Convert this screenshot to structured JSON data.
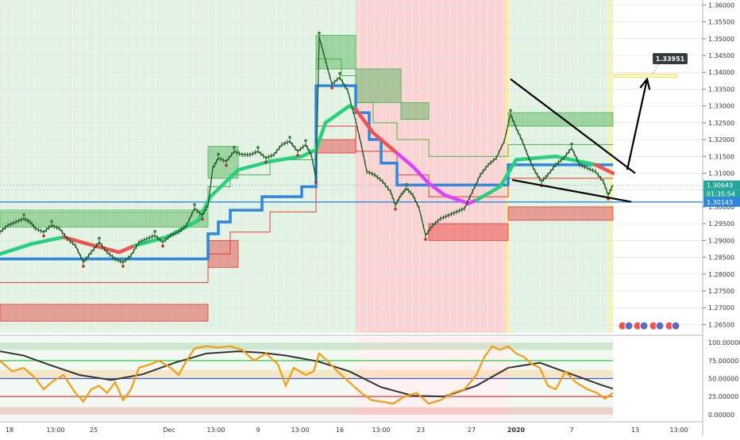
{
  "colors": {
    "bull_band": "#4caf50",
    "bear_band": "#e53935",
    "trend_up": "#26d07c",
    "trend_down": "#ef5350",
    "trend_neutral": "#e040fb",
    "support_blue": "#2e86de",
    "bar": "#1e5a1e",
    "oscillator": "#f39c12",
    "osc_signal": "#333333",
    "arrow": "#000000",
    "target_box": "#fff59d"
  },
  "chart_data": [
    {
      "type": "line",
      "panel": "price",
      "y_ticks": [
        "1.36000",
        "1.35500",
        "1.35000",
        "1.34500",
        "1.34000",
        "1.33500",
        "1.33000",
        "1.32500",
        "1.32000",
        "1.31500",
        "1.31000",
        "1.30500",
        "1.30000",
        "1.29500",
        "1.29000",
        "1.28500",
        "1.28000",
        "1.27500",
        "1.27000",
        "1.26500"
      ],
      "ylim": [
        1.2625,
        1.3615
      ],
      "x_ticks": [
        "18",
        "13:00",
        "25",
        "Dec",
        "13:00",
        "9",
        "13:00",
        "16",
        "13:00",
        "23",
        "27",
        "2020",
        "7",
        "13",
        "13:00"
      ],
      "price_tags": {
        "current": "1.30643",
        "countdown": "01:35:54",
        "support": "1.30143",
        "target": "1.33951"
      },
      "target_level": 1.33951,
      "support_level": 1.30143,
      "current_level": 1.30643,
      "price_path": [
        [
          0,
          1.2925
        ],
        [
          10,
          1.2945
        ],
        [
          20,
          1.2955
        ],
        [
          30,
          1.2965
        ],
        [
          38,
          1.2955
        ],
        [
          45,
          1.2935
        ],
        [
          55,
          1.2925
        ],
        [
          65,
          1.2945
        ],
        [
          75,
          1.2935
        ],
        [
          85,
          1.2905
        ],
        [
          95,
          1.2885
        ],
        [
          105,
          1.2835
        ],
        [
          115,
          1.2865
        ],
        [
          125,
          1.2895
        ],
        [
          135,
          1.2865
        ],
        [
          145,
          1.2845
        ],
        [
          155,
          1.2835
        ],
        [
          165,
          1.2855
        ],
        [
          175,
          1.2895
        ],
        [
          185,
          1.2905
        ],
        [
          195,
          1.2915
        ],
        [
          205,
          1.2895
        ],
        [
          215,
          1.2915
        ],
        [
          225,
          1.2925
        ],
        [
          235,
          1.2945
        ],
        [
          245,
          1.2995
        ],
        [
          255,
          1.2975
        ],
        [
          262,
          1.3005
        ],
        [
          268,
          1.3115
        ],
        [
          275,
          1.3145
        ],
        [
          285,
          1.3135
        ],
        [
          295,
          1.3165
        ],
        [
          305,
          1.3155
        ],
        [
          315,
          1.3155
        ],
        [
          325,
          1.3165
        ],
        [
          335,
          1.3145
        ],
        [
          345,
          1.3155
        ],
        [
          355,
          1.3185
        ],
        [
          365,
          1.3195
        ],
        [
          375,
          1.3165
        ],
        [
          385,
          1.3185
        ],
        [
          392,
          1.3155
        ],
        [
          398,
          1.3085
        ],
        [
          402,
          1.3505
        ],
        [
          410,
          1.3435
        ],
        [
          418,
          1.3365
        ],
        [
          428,
          1.3385
        ],
        [
          438,
          1.3345
        ],
        [
          448,
          1.3255
        ],
        [
          455,
          1.3185
        ],
        [
          462,
          1.3105
        ],
        [
          472,
          1.3095
        ],
        [
          482,
          1.3075
        ],
        [
          492,
          1.3045
        ],
        [
          498,
          1.3005
        ],
        [
          505,
          1.3035
        ],
        [
          512,
          1.3055
        ],
        [
          520,
          1.3035
        ],
        [
          528,
          1.2995
        ],
        [
          536,
          1.2915
        ],
        [
          545,
          1.2945
        ],
        [
          555,
          1.2965
        ],
        [
          565,
          1.2975
        ],
        [
          575,
          1.2985
        ],
        [
          585,
          1.2995
        ],
        [
          595,
          1.3045
        ],
        [
          605,
          1.3095
        ],
        [
          615,
          1.3125
        ],
        [
          625,
          1.3145
        ],
        [
          635,
          1.3195
        ],
        [
          643,
          1.3275
        ],
        [
          650,
          1.3235
        ],
        [
          658,
          1.3195
        ],
        [
          666,
          1.3145
        ],
        [
          674,
          1.3105
        ],
        [
          682,
          1.3075
        ],
        [
          690,
          1.3095
        ],
        [
          700,
          1.3125
        ],
        [
          710,
          1.3145
        ],
        [
          720,
          1.3175
        ],
        [
          730,
          1.3125
        ],
        [
          740,
          1.3115
        ],
        [
          750,
          1.3105
        ],
        [
          760,
          1.3075
        ],
        [
          766,
          1.3035
        ],
        [
          772,
          1.3065
        ]
      ],
      "trend_line": [
        [
          0,
          1.286,
          "up"
        ],
        [
          40,
          1.289,
          "up"
        ],
        [
          80,
          1.291,
          "down"
        ],
        [
          110,
          1.289,
          "down"
        ],
        [
          150,
          1.2865,
          "down"
        ],
        [
          170,
          1.2885,
          "up"
        ],
        [
          210,
          1.291,
          "up"
        ],
        [
          250,
          1.296,
          "up"
        ],
        [
          265,
          1.303,
          "up"
        ],
        [
          300,
          1.311,
          "up"
        ],
        [
          340,
          1.3135,
          "up"
        ],
        [
          380,
          1.315,
          "up"
        ],
        [
          398,
          1.317,
          "up"
        ],
        [
          410,
          1.325,
          "up"
        ],
        [
          440,
          1.33,
          "up"
        ],
        [
          448,
          1.329,
          "down"
        ],
        [
          470,
          1.322,
          "down"
        ],
        [
          500,
          1.316,
          "down"
        ],
        [
          520,
          1.312,
          "down"
        ],
        [
          540,
          1.307,
          "down"
        ],
        [
          560,
          1.3035,
          "down"
        ],
        [
          590,
          1.301,
          "down"
        ],
        [
          600,
          1.302,
          "up"
        ],
        [
          630,
          1.306,
          "up"
        ],
        [
          650,
          1.314,
          "up"
        ],
        [
          700,
          1.315,
          "up"
        ],
        [
          730,
          1.3135,
          "up"
        ],
        [
          750,
          1.3125,
          "down"
        ],
        [
          772,
          1.31,
          "down"
        ]
      ],
      "support_line": [
        [
          0,
          1.2845
        ],
        [
          262,
          1.2845
        ],
        [
          262,
          1.292
        ],
        [
          275,
          1.292
        ],
        [
          275,
          1.2955
        ],
        [
          290,
          1.2955
        ],
        [
          290,
          1.299
        ],
        [
          330,
          1.299
        ],
        [
          330,
          1.303
        ],
        [
          380,
          1.303
        ],
        [
          380,
          1.306
        ],
        [
          398,
          1.306
        ],
        [
          398,
          1.336
        ],
        [
          448,
          1.336
        ],
        [
          448,
          1.328
        ],
        [
          465,
          1.328
        ],
        [
          465,
          1.32
        ],
        [
          480,
          1.32
        ],
        [
          480,
          1.313
        ],
        [
          500,
          1.313
        ],
        [
          500,
          1.3065
        ],
        [
          640,
          1.3065
        ],
        [
          640,
          1.3125
        ],
        [
          772,
          1.3125
        ]
      ],
      "trend_segments_color": [
        "neutral_from_448_to_640"
      ],
      "bull_boxes": [
        [
          0,
          1.294,
          262,
          1.2985
        ],
        [
          262,
          1.3085,
          300,
          1.318
        ],
        [
          398,
          1.341,
          448,
          1.351
        ],
        [
          448,
          1.331,
          505,
          1.341
        ],
        [
          505,
          1.326,
          540,
          1.331
        ],
        [
          640,
          1.324,
          772,
          1.328
        ]
      ],
      "bear_boxes": [
        [
          0,
          1.266,
          262,
          1.271
        ],
        [
          262,
          1.282,
          300,
          1.29
        ],
        [
          398,
          1.316,
          448,
          1.32
        ],
        [
          540,
          1.29,
          640,
          1.295
        ],
        [
          640,
          1.296,
          772,
          1.3
        ]
      ],
      "thin_lines": [
        {
          "color": "bull",
          "points": [
            [
              0,
              1.299
            ],
            [
              262,
              1.299
            ],
            [
              262,
              1.306
            ],
            [
              290,
              1.306
            ],
            [
              290,
              1.3095
            ],
            [
              340,
              1.3095
            ],
            [
              340,
              1.314
            ],
            [
              398,
              1.314
            ],
            [
              398,
              1.344
            ],
            [
              430,
              1.344
            ],
            [
              430,
              1.339
            ],
            [
              448,
              1.339
            ],
            [
              448,
              1.331
            ],
            [
              470,
              1.331
            ],
            [
              470,
              1.325
            ],
            [
              500,
              1.325
            ],
            [
              500,
              1.32
            ],
            [
              540,
              1.32
            ],
            [
              540,
              1.315
            ],
            [
              640,
              1.315
            ],
            [
              640,
              1.3185
            ],
            [
              772,
              1.3185
            ]
          ]
        },
        {
          "color": "bear",
          "points": [
            [
              0,
              1.2775
            ],
            [
              262,
              1.2775
            ],
            [
              262,
              1.286
            ],
            [
              290,
              1.286
            ],
            [
              290,
              1.2925
            ],
            [
              340,
              1.2925
            ],
            [
              340,
              1.2985
            ],
            [
              398,
              1.2985
            ],
            [
              398,
              1.324
            ],
            [
              448,
              1.324
            ],
            [
              448,
              1.3165
            ],
            [
              500,
              1.3165
            ],
            [
              500,
              1.3095
            ],
            [
              540,
              1.3095
            ],
            [
              540,
              1.303
            ],
            [
              640,
              1.303
            ],
            [
              640,
              1.3085
            ],
            [
              772,
              1.3085
            ]
          ]
        }
      ],
      "background_zones": [
        {
          "from": 0,
          "to": 448,
          "tone": "bull"
        },
        {
          "from": 448,
          "to": 640,
          "tone": "bear"
        },
        {
          "from": 640,
          "to": 772,
          "tone": "bull"
        }
      ],
      "wedge_lines": [
        [
          [
            643,
            1.338
          ],
          [
            800,
            1.31
          ]
        ],
        [
          [
            645,
            1.308
          ],
          [
            795,
            1.3015
          ]
        ]
      ],
      "projection_arrow": [
        [
          790,
          1.311
        ],
        [
          815,
          1.338
        ]
      ],
      "target_box": [
        773,
        1.33951,
        853,
        1.3385
      ]
    },
    {
      "type": "line",
      "panel": "oscillator",
      "y_ticks": [
        "100.00000",
        "75.00000",
        "50.00000",
        "25.00000",
        "0.00000"
      ],
      "ylim": [
        -8,
        108
      ],
      "level_lines": [
        {
          "value": 75,
          "color": "#2ecc40"
        },
        {
          "value": 50,
          "color": "#3b5bdb"
        },
        {
          "value": 25,
          "color": "#e53935"
        }
      ],
      "bands": [
        {
          "from": 90,
          "to": 100,
          "tone": "bull"
        },
        {
          "from": 50,
          "to": 62,
          "tone": "warm"
        },
        {
          "from": 0,
          "to": 10,
          "tone": "bear"
        }
      ],
      "oscillator_values": [
        [
          0,
          75
        ],
        [
          15,
          60
        ],
        [
          30,
          65
        ],
        [
          45,
          50
        ],
        [
          55,
          35
        ],
        [
          65,
          45
        ],
        [
          80,
          55
        ],
        [
          95,
          30
        ],
        [
          105,
          18
        ],
        [
          115,
          35
        ],
        [
          125,
          40
        ],
        [
          135,
          30
        ],
        [
          145,
          45
        ],
        [
          155,
          20
        ],
        [
          165,
          35
        ],
        [
          175,
          65
        ],
        [
          190,
          70
        ],
        [
          200,
          75
        ],
        [
          215,
          65
        ],
        [
          225,
          55
        ],
        [
          235,
          75
        ],
        [
          245,
          92
        ],
        [
          260,
          95
        ],
        [
          275,
          93
        ],
        [
          290,
          95
        ],
        [
          305,
          90
        ],
        [
          320,
          75
        ],
        [
          335,
          85
        ],
        [
          350,
          70
        ],
        [
          360,
          40
        ],
        [
          370,
          65
        ],
        [
          385,
          55
        ],
        [
          395,
          60
        ],
        [
          402,
          85
        ],
        [
          412,
          75
        ],
        [
          425,
          60
        ],
        [
          440,
          45
        ],
        [
          455,
          30
        ],
        [
          468,
          20
        ],
        [
          480,
          18
        ],
        [
          495,
          15
        ],
        [
          510,
          25
        ],
        [
          525,
          30
        ],
        [
          540,
          15
        ],
        [
          555,
          20
        ],
        [
          570,
          30
        ],
        [
          585,
          35
        ],
        [
          600,
          55
        ],
        [
          610,
          80
        ],
        [
          620,
          95
        ],
        [
          630,
          90
        ],
        [
          640,
          95
        ],
        [
          650,
          85
        ],
        [
          660,
          80
        ],
        [
          670,
          70
        ],
        [
          680,
          65
        ],
        [
          690,
          40
        ],
        [
          700,
          35
        ],
        [
          712,
          60
        ],
        [
          725,
          45
        ],
        [
          740,
          35
        ],
        [
          752,
          30
        ],
        [
          762,
          22
        ],
        [
          772,
          30
        ]
      ],
      "signal_values": [
        [
          0,
          88
        ],
        [
          30,
          82
        ],
        [
          60,
          70
        ],
        [
          100,
          55
        ],
        [
          140,
          48
        ],
        [
          180,
          56
        ],
        [
          220,
          72
        ],
        [
          260,
          85
        ],
        [
          300,
          88
        ],
        [
          330,
          86
        ],
        [
          360,
          82
        ],
        [
          400,
          74
        ],
        [
          440,
          60
        ],
        [
          480,
          38
        ],
        [
          520,
          26
        ],
        [
          560,
          25
        ],
        [
          600,
          40
        ],
        [
          640,
          65
        ],
        [
          680,
          72
        ],
        [
          720,
          56
        ],
        [
          760,
          40
        ],
        [
          772,
          36
        ]
      ]
    }
  ]
}
